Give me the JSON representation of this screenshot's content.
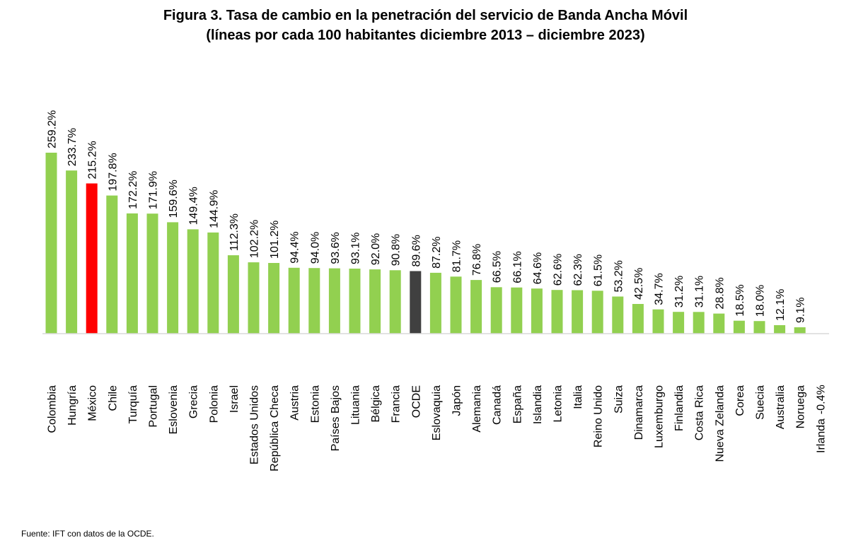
{
  "chart_data": {
    "type": "bar",
    "title": "Figura 3. Tasa de cambio en la penetración del servicio de Banda Ancha Móvil",
    "subtitle": "(líneas por cada 100 habitantes diciembre 2013 – diciembre 2023)",
    "categories": [
      "Colombia",
      "Hungría",
      "México",
      "Chile",
      "Turquía",
      "Portugal",
      "Eslovenia",
      "Grecia",
      "Polonia",
      "Israel",
      "Estados Unidos",
      "República Checa",
      "Austria",
      "Estonia",
      "Países Bajos",
      "Lituania",
      "Bélgica",
      "Francia",
      "OCDE",
      "Eslovaquia",
      "Japón",
      "Alemania",
      "Canadá",
      "España",
      "Islandia",
      "Letonia",
      "Italia",
      "Reino Unido",
      "Suiza",
      "Dinamarca",
      "Luxemburgo",
      "Finlandia",
      "Costa Rica",
      "Nueva Zelanda",
      "Corea",
      "Suecia",
      "Australia",
      "Noruega",
      "Irlanda"
    ],
    "values": [
      259.2,
      233.7,
      215.2,
      197.8,
      172.2,
      171.9,
      159.6,
      149.4,
      144.9,
      112.3,
      102.2,
      101.2,
      94.4,
      94.0,
      93.6,
      93.1,
      92.0,
      90.8,
      89.6,
      87.2,
      81.7,
      76.8,
      66.5,
      66.1,
      64.6,
      62.6,
      62.3,
      61.5,
      53.2,
      42.5,
      34.7,
      31.2,
      31.1,
      28.8,
      18.5,
      18.0,
      12.1,
      9.1,
      -0.4
    ],
    "value_labels": [
      "259.2%",
      "233.7%",
      "215.2%",
      "197.8%",
      "172.2%",
      "171.9%",
      "159.6%",
      "149.4%",
      "144.9%",
      "112.3%",
      "102.2%",
      "101.2%",
      "94.4%",
      "94.0%",
      "93.6%",
      "93.1%",
      "92.0%",
      "90.8%",
      "89.6%",
      "87.2%",
      "81.7%",
      "76.8%",
      "66.5%",
      "66.1%",
      "64.6%",
      "62.6%",
      "62.3%",
      "61.5%",
      "53.2%",
      "42.5%",
      "34.7%",
      "31.2%",
      "31.1%",
      "28.8%",
      "18.5%",
      "18.0%",
      "12.1%",
      "9.1%",
      "-0.4%"
    ],
    "colors": {
      "default": "#92D050",
      "México": "#FF0000",
      "OCDE": "#404040"
    },
    "axis_color": "#D9D9D9",
    "grid": false,
    "legend": "none"
  },
  "source": "Fuente: IFT con datos de la OCDE."
}
